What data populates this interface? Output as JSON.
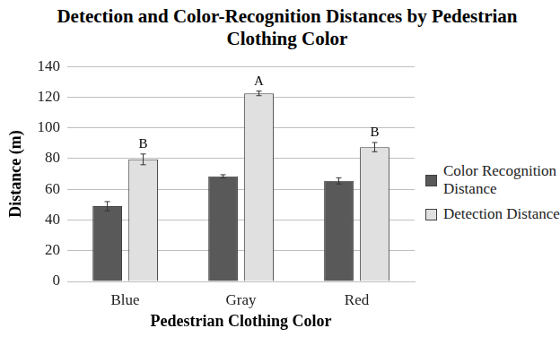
{
  "chart_data": {
    "type": "bar",
    "title": "Detection and Color-Recognition Distances by Pedestrian Clothing Color",
    "x_label": "Pedestrian Clothing Color",
    "y_label": "Distance (m)",
    "categories": [
      "Blue",
      "Gray",
      "Red"
    ],
    "series": [
      {
        "name": "Color Recognition Distance",
        "color": "#595959",
        "values": [
          49,
          68.5,
          65.5
        ],
        "errors": [
          3,
          1,
          2
        ]
      },
      {
        "name": "Detection Distance",
        "color": "#e0e0e0",
        "values": [
          79.5,
          122.5,
          87.5
        ],
        "errors": [
          3.5,
          1.5,
          3
        ],
        "annotations": [
          "B",
          "A",
          "B"
        ]
      }
    ],
    "ylim": [
      0,
      140
    ],
    "yticks": [
      0,
      20,
      40,
      60,
      80,
      100,
      120,
      140
    ],
    "grid": true,
    "legend": "right"
  }
}
